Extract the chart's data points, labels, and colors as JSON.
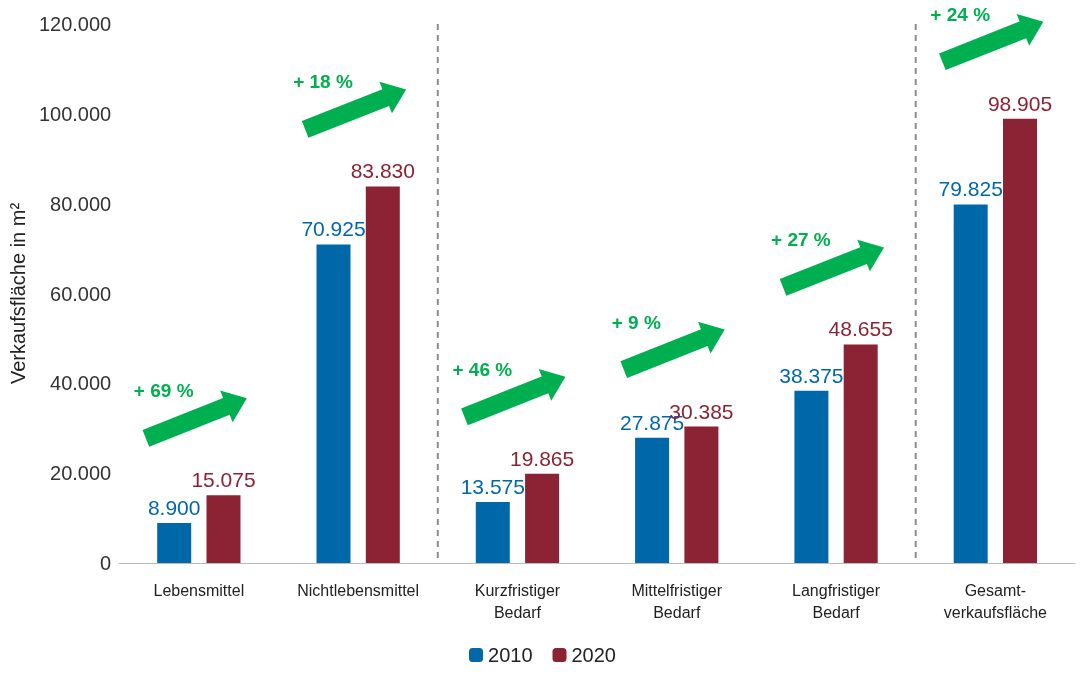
{
  "chart_data": {
    "type": "bar",
    "ylabel": "Verkaufsfläche in m²",
    "categories": [
      "Lebensmittel",
      "Nichtlebensmittel",
      "Kurzfristiger\nBedarf",
      "Mittelfristiger\nBedarf",
      "Langfristiger\nBedarf",
      "Gesamt-\nverkaufsfläche"
    ],
    "series": [
      {
        "name": "2010",
        "color": "#0068a8",
        "values": [
          8900,
          70925,
          13575,
          27875,
          38375,
          79825
        ],
        "value_labels": [
          "8.900",
          "70.925",
          "13.575",
          "27.875",
          "38.375",
          "79.825"
        ]
      },
      {
        "name": "2020",
        "color": "#8b2335",
        "values": [
          15075,
          83830,
          19865,
          30385,
          48655,
          98905
        ],
        "value_labels": [
          "15.075",
          "83.830",
          "19.865",
          "30.385",
          "48.655",
          "98.905"
        ]
      }
    ],
    "ylim": [
      0,
      120000
    ],
    "yticks": [
      0,
      {
        "value": 20000,
        "label": "20.000"
      },
      {
        "value": 40000,
        "label": "40.000"
      },
      {
        "value": 60000,
        "label": "60.000"
      },
      {
        "value": 80000,
        "label": "80.000"
      },
      {
        "value": 100000,
        "label": "100.000"
      },
      {
        "value": 120000,
        "label": "120.000"
      }
    ],
    "annotations": [
      "+ 69 %",
      "+ 18 %",
      "+ 46 %",
      "+ 9 %",
      "+ 27 %",
      "+ 24 %"
    ],
    "grid": false,
    "legend": "bottom"
  }
}
